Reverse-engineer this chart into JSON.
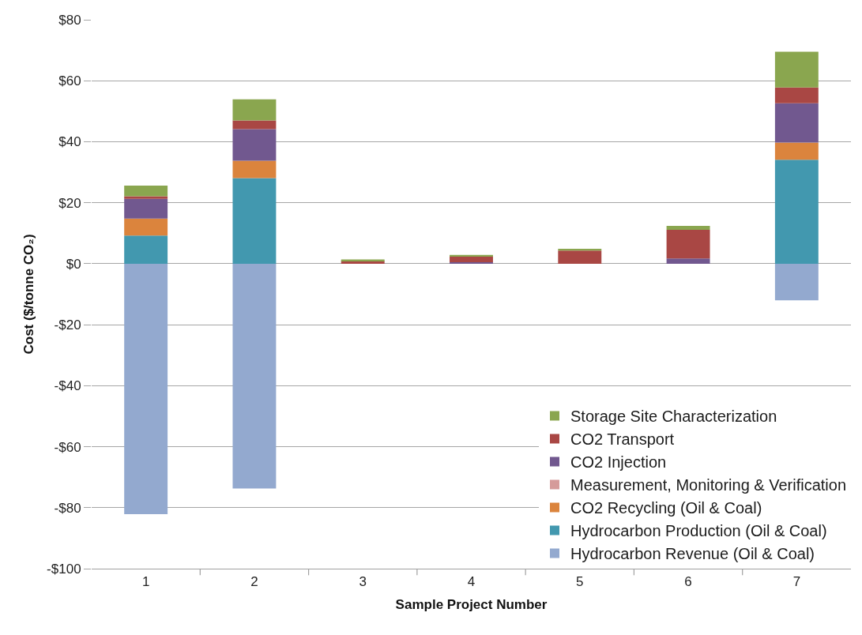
{
  "chart_data": {
    "type": "bar",
    "stacked": true,
    "xlabel": "Sample Project Number",
    "ylabel": "Cost ($/tonne CO₂)",
    "categories": [
      "1",
      "2",
      "3",
      "4",
      "5",
      "6",
      "7"
    ],
    "series": [
      {
        "name": "Hydrocarbon Revenue (Oil & Coal)",
        "color": "#93a9cf",
        "values": [
          -82.1,
          -73.7,
          null,
          null,
          null,
          null,
          -12.0
        ]
      },
      {
        "name": "Hydrocarbon Production (Oil & Coal)",
        "color": "#4298af",
        "values": [
          9.2,
          28.1,
          null,
          null,
          null,
          null,
          34.1
        ]
      },
      {
        "name": "CO2 Recycling (Oil & Coal)",
        "color": "#db843d",
        "values": [
          5.6,
          5.7,
          null,
          null,
          null,
          null,
          5.6
        ]
      },
      {
        "name": "Measurement, Monitoring & Verification",
        "color": "#d59b9a",
        "values": [
          null,
          null,
          null,
          null,
          null,
          null,
          null
        ]
      },
      {
        "name": "CO2 Injection",
        "color": "#71588f",
        "values": [
          6.5,
          10.3,
          null,
          0.5,
          null,
          1.7,
          12.9
        ]
      },
      {
        "name": "CO2 Transport",
        "color": "#a94744",
        "values": [
          0.8,
          2.9,
          0.9,
          2.0,
          4.3,
          9.4,
          5.2
        ]
      },
      {
        "name": "Storage Site Characterization",
        "color": "#8aa64f",
        "values": [
          3.5,
          6.9,
          0.5,
          0.4,
          0.6,
          1.3,
          11.7
        ]
      }
    ],
    "ylim": [
      -100,
      80
    ],
    "yticks": [
      {
        "value": -100,
        "label": "-$100"
      },
      {
        "value": -80,
        "label": "-$80"
      },
      {
        "value": -60,
        "label": "-$60"
      },
      {
        "value": -40,
        "label": "-$40"
      },
      {
        "value": -20,
        "label": "-$20"
      },
      {
        "value": 0,
        "label": "$0"
      },
      {
        "value": 20,
        "label": "$20"
      },
      {
        "value": 40,
        "label": "$40"
      },
      {
        "value": 60,
        "label": "$60"
      },
      {
        "value": 80,
        "label": "$80"
      }
    ],
    "grid": "y",
    "legend": "bottom right"
  }
}
